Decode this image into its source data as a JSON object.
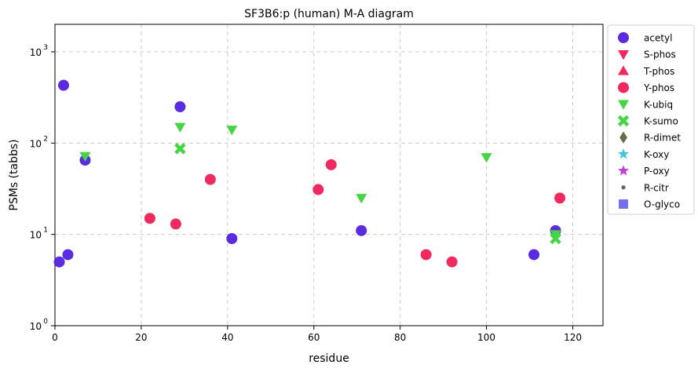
{
  "chart_data": {
    "type": "scatter",
    "title": "SF3B6:p (human) M-A diagram",
    "xlabel": "residue",
    "ylabel": "PSMs (tabbs)",
    "xlim": [
      0,
      127
    ],
    "ylim": [
      1,
      2000
    ],
    "yscale": "log",
    "xticks": [
      0,
      20,
      40,
      60,
      80,
      100,
      120
    ],
    "yticks": [
      1,
      10,
      100,
      1000
    ],
    "ytick_labels": [
      "10",
      "10",
      "10",
      "10"
    ],
    "ytick_exponents": [
      "0",
      "1",
      "2",
      "3"
    ],
    "grid": true,
    "legend_position": "outside-right",
    "series": [
      {
        "name": "acetyl",
        "marker": "circle",
        "color": "#5b2be0",
        "points": [
          [
            1,
            5
          ],
          [
            2,
            430
          ],
          [
            3,
            6
          ],
          [
            7,
            65
          ],
          [
            29,
            250
          ],
          [
            41,
            9
          ],
          [
            71,
            11
          ],
          [
            111,
            6
          ],
          [
            116,
            11
          ]
        ]
      },
      {
        "name": "S-phos",
        "marker": "triangle-down",
        "color": "#f0295f",
        "points": []
      },
      {
        "name": "T-phos",
        "marker": "triangle-up",
        "color": "#f0295f",
        "points": []
      },
      {
        "name": "Y-phos",
        "marker": "circle",
        "color": "#f0295f",
        "points": [
          [
            22,
            15
          ],
          [
            28,
            13
          ],
          [
            36,
            40
          ],
          [
            61,
            31
          ],
          [
            64,
            58
          ],
          [
            86,
            6
          ],
          [
            92,
            5
          ],
          [
            117,
            25
          ]
        ]
      },
      {
        "name": "K-ubiq",
        "marker": "triangle-down",
        "color": "#44d444",
        "points": [
          [
            7,
            72
          ],
          [
            29,
            150
          ],
          [
            41,
            140
          ],
          [
            71,
            25
          ],
          [
            100,
            70
          ],
          [
            116,
            10
          ]
        ]
      },
      {
        "name": "K-sumo",
        "marker": "x",
        "color": "#44d444",
        "points": [
          [
            29,
            87
          ],
          [
            116,
            9
          ]
        ]
      },
      {
        "name": "R-dimet",
        "marker": "diamond",
        "color": "#6b6b4a",
        "points": []
      },
      {
        "name": "K-oxy",
        "marker": "star",
        "color": "#40c8d8",
        "points": []
      },
      {
        "name": "P-oxy",
        "marker": "star",
        "color": "#c040d0",
        "points": []
      },
      {
        "name": "R-citr",
        "marker": "dot",
        "color": "#666666",
        "points": []
      },
      {
        "name": "O-glyco",
        "marker": "square",
        "color": "#7070e8",
        "points": []
      }
    ]
  }
}
